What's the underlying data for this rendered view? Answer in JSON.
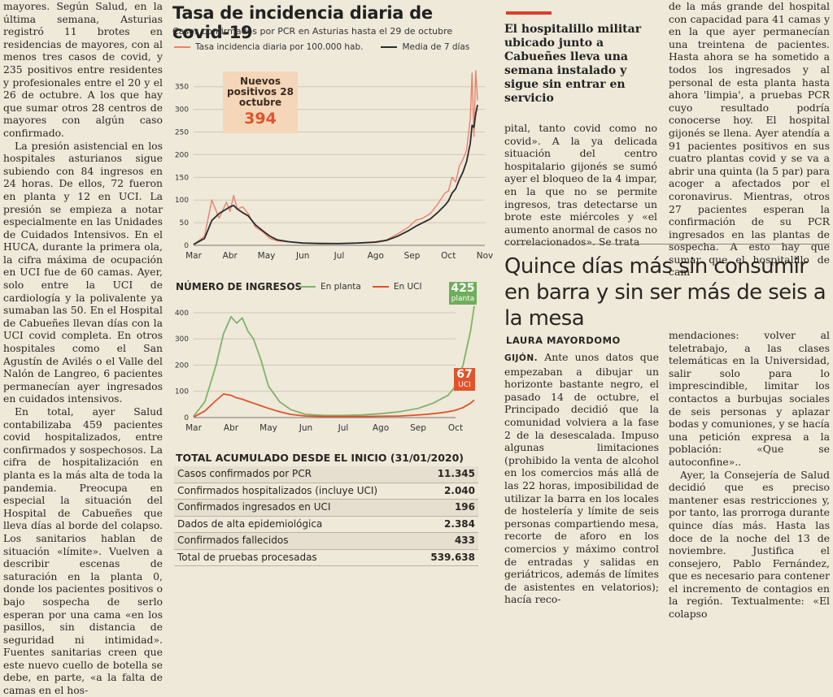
{
  "left_column": {
    "paragraphs": [
      "mayores. Según Salud, en la última semana, Asturias registró 11 brotes en residencias de mayores, con al menos tres casos de covid, y 235 positivos entre residentes y profesionales entre el 20 y el 26 de octubre. A los que hay que sumar otros 28 centros de mayores con algún caso confirmado.",
      "La presión asistencial en los hospitales asturianos sigue subiendo con 84 ingresos en 24 horas. De ellos, 72 fueron en planta y 12 en UCI. La presión se empieza a notar especialmente en las Unidades de Cuidados Intensivos. En el HUCA, durante la primera ola, la cifra máxima de ocupación en UCI fue de 60 camas. Ayer, solo entre la UCI de cardiología y la polivalente ya sumaban las 50. En el Hospital de Cabueñes llevan días con la UCI covid completa. En otros hospitales como el San Agustín de Avilés o el Valle del Nalón de Langreo, 6 pacientes permanecían ayer ingresados en cuidados intensivos.",
      "En total, ayer Salud contabilizaba 459 pacientes covid hospitalizados, entre confirmados y sospechosos. La cifra de hospitalización en planta es la más alta de toda la pandemia. Preocupa en especial la situación del Hospital de Cabueñes que lleva días al borde del colapso. Los sanitarios hablan de situación «límite». Vuelven a describir escenas de saturación en la planta 0, donde los pacientes positivos o bajo sospecha de serlo esperan por una cama «en los pasillos, sin distancia de seguridad ni intimidad». Fuentes sanitarias creen que este nuevo cuello de botella se debe, en parte, «a la falta de camas en el hos-"
    ]
  },
  "chart1": {
    "title": "Tasa de incidencia diaria de covid-19",
    "subtitle": "Casos confirmados por PCR en Asturias hasta el 29 de octubre",
    "legend": [
      "Tasa incidencia diaria por 100.000 hab.",
      "Media de 7 días"
    ],
    "callout_label": "Nuevos positivos 28 octubre",
    "callout_value": "394",
    "colors": {
      "daily": "#e8826a",
      "avg": "#2b2b2b"
    }
  },
  "chart2": {
    "title": "NÚMERO DE INGRESOS",
    "legend": [
      "En planta",
      "En UCI"
    ],
    "badge_planta_value": "425",
    "badge_planta_label": "planta",
    "badge_uci_value": "67",
    "badge_uci_label": "UCI",
    "colors": {
      "planta": "#7fb36a",
      "uci": "#e0532b"
    }
  },
  "chart_data": [
    {
      "type": "line",
      "title": "Tasa de incidencia diaria de covid-19",
      "subtitle": "Casos confirmados por PCR en Asturias hasta el 29 de octubre",
      "x_ticks": [
        "Mar",
        "Abr",
        "May",
        "Jun",
        "Jul",
        "Ago",
        "Sep",
        "Oct",
        "Nov"
      ],
      "y_ticks": [
        0,
        50,
        100,
        150,
        200,
        250,
        300,
        350
      ],
      "ylim": [
        0,
        380
      ],
      "grid": true,
      "x": [
        0,
        0.3,
        0.5,
        0.7,
        0.9,
        1.0,
        1.1,
        1.2,
        1.35,
        1.5,
        1.7,
        1.9,
        2.1,
        2.3,
        2.6,
        3.0,
        3.5,
        4.0,
        4.5,
        5.0,
        5.3,
        5.6,
        5.9,
        6.1,
        6.3,
        6.5,
        6.7,
        6.9,
        7.0,
        7.1,
        7.2,
        7.3,
        7.4,
        7.5,
        7.6,
        7.65,
        7.7,
        7.75,
        7.8
      ],
      "series": [
        {
          "name": "Tasa incidencia diaria por 100.000 hab.",
          "values": [
            2,
            20,
            100,
            60,
            95,
            75,
            110,
            80,
            85,
            70,
            40,
            30,
            15,
            10,
            8,
            5,
            5,
            4,
            5,
            8,
            12,
            25,
            40,
            55,
            60,
            70,
            90,
            115,
            120,
            150,
            140,
            175,
            190,
            210,
            280,
            380,
            240,
            385,
            320
          ]
        },
        {
          "name": "Media de 7 días",
          "values": [
            2,
            15,
            55,
            70,
            80,
            85,
            88,
            80,
            72,
            65,
            45,
            32,
            20,
            12,
            8,
            5,
            4,
            4,
            5,
            7,
            11,
            20,
            32,
            42,
            50,
            58,
            72,
            88,
            98,
            115,
            125,
            145,
            162,
            185,
            225,
            265,
            260,
            290,
            310
          ]
        }
      ]
    },
    {
      "type": "line",
      "title": "NÚMERO DE INGRESOS",
      "x_ticks": [
        "Mar",
        "Abr",
        "May",
        "Jun",
        "Jul",
        "Ago",
        "Sep",
        "Oct"
      ],
      "y_ticks": [
        0,
        100,
        200,
        300,
        400
      ],
      "ylim": [
        0,
        440
      ],
      "grid": true,
      "x": [
        0,
        0.3,
        0.6,
        0.8,
        1.0,
        1.15,
        1.3,
        1.45,
        1.6,
        1.8,
        2.0,
        2.3,
        2.6,
        3.0,
        3.5,
        4.0,
        4.5,
        5.0,
        5.5,
        6.0,
        6.2,
        6.4,
        6.6,
        6.8,
        7.0,
        7.2,
        7.4,
        7.5
      ],
      "series": [
        {
          "name": "En planta",
          "values": [
            5,
            60,
            200,
            320,
            385,
            360,
            380,
            330,
            300,
            220,
            120,
            60,
            30,
            12,
            8,
            8,
            10,
            15,
            22,
            35,
            45,
            55,
            70,
            85,
            120,
            200,
            330,
            425
          ]
        },
        {
          "name": "En UCI",
          "values": [
            2,
            25,
            65,
            90,
            85,
            75,
            70,
            62,
            55,
            45,
            35,
            22,
            12,
            6,
            4,
            4,
            4,
            5,
            6,
            10,
            12,
            15,
            18,
            22,
            28,
            38,
            55,
            67
          ]
        }
      ]
    }
  ],
  "total": {
    "title": "TOTAL ACUMULADO DESDE EL INICIO (31/01/2020)",
    "rows": [
      {
        "label": "Casos confirmados por PCR",
        "value": "11.345"
      },
      {
        "label": "Confirmados hospitalizados (incluye UCI)",
        "value": "2.040"
      },
      {
        "label": "Confirmados ingresados en UCI",
        "value": "196"
      },
      {
        "label": "Dados de alta epidemiológica",
        "value": "2.384"
      },
      {
        "label": "Confirmados fallecidos",
        "value": "433"
      },
      {
        "label": "Total de pruebas procesadas",
        "value": "539.638"
      }
    ]
  },
  "sidebar": {
    "headline": "El hospitalillo militar ubicado junto a Cabueñes lleva una semana instalado y sigue sin entrar en servicio",
    "text": "pital, tanto covid como no covid». A la ya delicada situación del centro hospitalario gijonés se sumó ayer el bloqueo de la 4 impar, en la que no se permite ingresos, tras detectarse un brote este miércoles y «el aumento anormal de casos no correlacionados». Se trata"
  },
  "right_top": {
    "text": "de la más grande del hospital con capacidad para 41 camas y en la que ayer permanecían una treintena de pacientes. Hasta ahora se ha sometido a todos los ingresados y al personal de esta planta hasta ahora 'limpia', a pruebas PCR cuyo resultado podría conocerse hoy. El hospital gijonés se llena. Ayer atendía a 91 pacientes positivos en sus cuatro plantas covid y se va a abrir una quinta (la 5 par) para acoger a afectados por el coronavirus. Mientras, otros 27 pacientes esperan la confirmación de su PCR ingresados en las plantas de sospecha. A esto hay que sumar que el hospitalillo de cam-"
  },
  "article2": {
    "title": "Quince días más sin consumir en barra y sin ser más de seis a la mesa",
    "author": "LAURA MAYORDOMO",
    "dateline": "GIJÓN.",
    "col1": "Ante unos datos que empezaban a dibujar un horizonte bastante negro, el pasado 14 de octubre, el Principado decidió que la comunidad volviera a la fase 2 de la desescalada. Impuso algunas limitaciones (prohibido la venta de alcohol en los comercios más allá de las 22 horas, imposibilidad de utilizar la barra en los locales de hostelería y límite de seis personas compartiendo mesa, recorte de aforo en los comercios y máximo control de entradas y salidas en geriátricos, además de límites de asistentes en velatorios); hacía reco-",
    "col2_p1": "mendaciones: volver al teletrabajo, a las clases telemáticas en la Universidad, salir solo para lo imprescindible, limitar los contactos a burbujas sociales de seis personas y aplazar bodas y comuniones, y se hacía una petición expresa a la población: «Que se autoconfine»..",
    "col2_p2": "Ayer, la Consejería de Salud decidió que es preciso mantener esas restricciones y, por tanto, las prorroga durante quince días más. Hasta las doce de la noche del 13 de noviembre. Justifica el consejero, Pablo Fernández, que es necesario para contener el incremento de contagios en la región. Textualmente: «El colapso"
  }
}
